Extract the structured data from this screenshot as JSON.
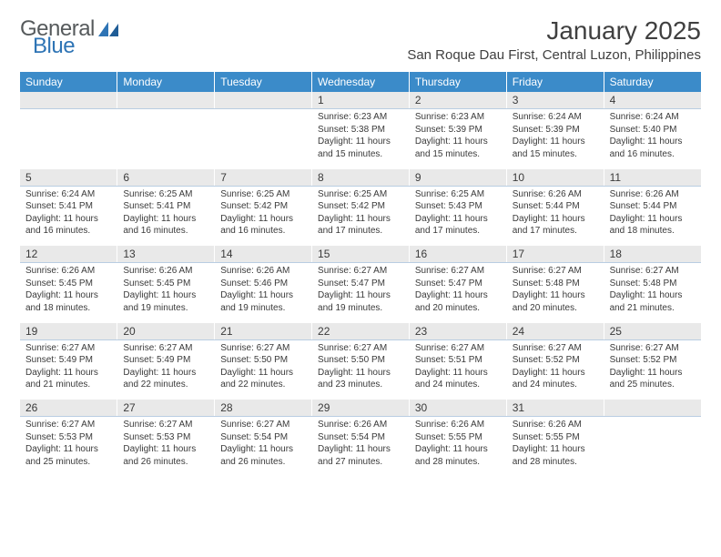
{
  "logo": {
    "word1": "General",
    "word2": "Blue"
  },
  "title": "January 2025",
  "location": "San Roque Dau First, Central Luzon, Philippines",
  "colors": {
    "header_bg": "#3b8bc9",
    "header_text": "#ffffff",
    "daynum_bg": "#e9e9e9",
    "separator": "#b9cde2",
    "text": "#3a3a3a",
    "logo_gray": "#565a5c",
    "logo_blue": "#2e74b5"
  },
  "fonts": {
    "title_size": 28,
    "location_size": 15,
    "dow_size": 12,
    "daynum_size": 12,
    "detail_size": 10
  },
  "days_of_week": [
    "Sunday",
    "Monday",
    "Tuesday",
    "Wednesday",
    "Thursday",
    "Friday",
    "Saturday"
  ],
  "weeks": [
    [
      null,
      null,
      null,
      {
        "n": "1",
        "sr": "6:23 AM",
        "ss": "5:38 PM",
        "dl": "11 hours and 15 minutes."
      },
      {
        "n": "2",
        "sr": "6:23 AM",
        "ss": "5:39 PM",
        "dl": "11 hours and 15 minutes."
      },
      {
        "n": "3",
        "sr": "6:24 AM",
        "ss": "5:39 PM",
        "dl": "11 hours and 15 minutes."
      },
      {
        "n": "4",
        "sr": "6:24 AM",
        "ss": "5:40 PM",
        "dl": "11 hours and 16 minutes."
      }
    ],
    [
      {
        "n": "5",
        "sr": "6:24 AM",
        "ss": "5:41 PM",
        "dl": "11 hours and 16 minutes."
      },
      {
        "n": "6",
        "sr": "6:25 AM",
        "ss": "5:41 PM",
        "dl": "11 hours and 16 minutes."
      },
      {
        "n": "7",
        "sr": "6:25 AM",
        "ss": "5:42 PM",
        "dl": "11 hours and 16 minutes."
      },
      {
        "n": "8",
        "sr": "6:25 AM",
        "ss": "5:42 PM",
        "dl": "11 hours and 17 minutes."
      },
      {
        "n": "9",
        "sr": "6:25 AM",
        "ss": "5:43 PM",
        "dl": "11 hours and 17 minutes."
      },
      {
        "n": "10",
        "sr": "6:26 AM",
        "ss": "5:44 PM",
        "dl": "11 hours and 17 minutes."
      },
      {
        "n": "11",
        "sr": "6:26 AM",
        "ss": "5:44 PM",
        "dl": "11 hours and 18 minutes."
      }
    ],
    [
      {
        "n": "12",
        "sr": "6:26 AM",
        "ss": "5:45 PM",
        "dl": "11 hours and 18 minutes."
      },
      {
        "n": "13",
        "sr": "6:26 AM",
        "ss": "5:45 PM",
        "dl": "11 hours and 19 minutes."
      },
      {
        "n": "14",
        "sr": "6:26 AM",
        "ss": "5:46 PM",
        "dl": "11 hours and 19 minutes."
      },
      {
        "n": "15",
        "sr": "6:27 AM",
        "ss": "5:47 PM",
        "dl": "11 hours and 19 minutes."
      },
      {
        "n": "16",
        "sr": "6:27 AM",
        "ss": "5:47 PM",
        "dl": "11 hours and 20 minutes."
      },
      {
        "n": "17",
        "sr": "6:27 AM",
        "ss": "5:48 PM",
        "dl": "11 hours and 20 minutes."
      },
      {
        "n": "18",
        "sr": "6:27 AM",
        "ss": "5:48 PM",
        "dl": "11 hours and 21 minutes."
      }
    ],
    [
      {
        "n": "19",
        "sr": "6:27 AM",
        "ss": "5:49 PM",
        "dl": "11 hours and 21 minutes."
      },
      {
        "n": "20",
        "sr": "6:27 AM",
        "ss": "5:49 PM",
        "dl": "11 hours and 22 minutes."
      },
      {
        "n": "21",
        "sr": "6:27 AM",
        "ss": "5:50 PM",
        "dl": "11 hours and 22 minutes."
      },
      {
        "n": "22",
        "sr": "6:27 AM",
        "ss": "5:50 PM",
        "dl": "11 hours and 23 minutes."
      },
      {
        "n": "23",
        "sr": "6:27 AM",
        "ss": "5:51 PM",
        "dl": "11 hours and 24 minutes."
      },
      {
        "n": "24",
        "sr": "6:27 AM",
        "ss": "5:52 PM",
        "dl": "11 hours and 24 minutes."
      },
      {
        "n": "25",
        "sr": "6:27 AM",
        "ss": "5:52 PM",
        "dl": "11 hours and 25 minutes."
      }
    ],
    [
      {
        "n": "26",
        "sr": "6:27 AM",
        "ss": "5:53 PM",
        "dl": "11 hours and 25 minutes."
      },
      {
        "n": "27",
        "sr": "6:27 AM",
        "ss": "5:53 PM",
        "dl": "11 hours and 26 minutes."
      },
      {
        "n": "28",
        "sr": "6:27 AM",
        "ss": "5:54 PM",
        "dl": "11 hours and 26 minutes."
      },
      {
        "n": "29",
        "sr": "6:26 AM",
        "ss": "5:54 PM",
        "dl": "11 hours and 27 minutes."
      },
      {
        "n": "30",
        "sr": "6:26 AM",
        "ss": "5:55 PM",
        "dl": "11 hours and 28 minutes."
      },
      {
        "n": "31",
        "sr": "6:26 AM",
        "ss": "5:55 PM",
        "dl": "11 hours and 28 minutes."
      },
      null
    ]
  ]
}
